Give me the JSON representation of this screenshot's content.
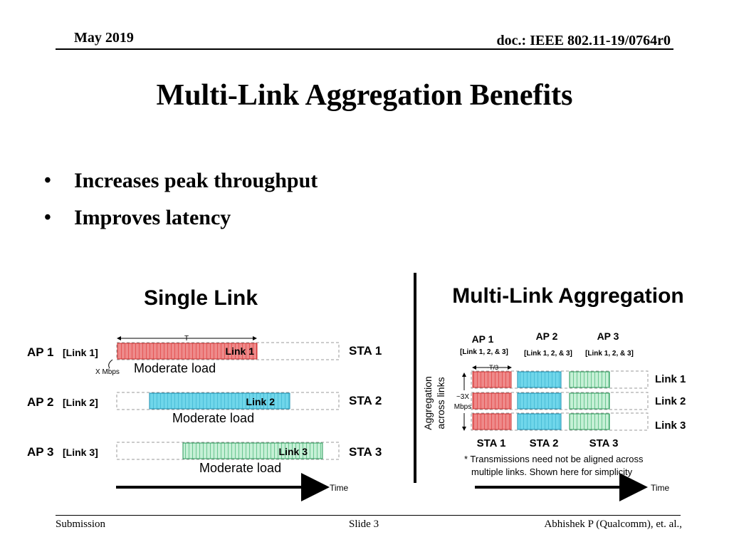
{
  "header": {
    "date": "May 2019",
    "doc": "doc.: IEEE 802.11-19/0764r0"
  },
  "title": "Multi-Link Aggregation Benefits",
  "bullets": [
    "Increases peak throughput",
    "Improves latency"
  ],
  "single": {
    "heading": "Single Link",
    "period": "T",
    "rate": "X Mbps",
    "time": "Time",
    "rows": [
      {
        "ap": "AP 1",
        "link": "[Link 1]",
        "bar": "Link 1",
        "load": "Moderate load",
        "sta": "STA 1",
        "color": "#e87272"
      },
      {
        "ap": "AP 2",
        "link": "[Link 2]",
        "bar": "Link 2",
        "load": "Moderate load",
        "sta": "STA 2",
        "color": "#5ccfe6"
      },
      {
        "ap": "AP 3",
        "link": "[Link 3]",
        "bar": "Link 3",
        "load": "Moderate load",
        "sta": "STA 3",
        "color": "#8fe0b0"
      }
    ]
  },
  "multi": {
    "heading": "Multi-Link Aggregation",
    "aps": [
      {
        "ap": "AP 1",
        "links": "[Link 1, 2, & 3]"
      },
      {
        "ap": "AP 2",
        "links": "[Link 1, 2, & 3]"
      },
      {
        "ap": "AP 3",
        "links": "[Link 1, 2, & 3]"
      }
    ],
    "period": "~T/3",
    "axis_label_1": "Aggregation",
    "axis_label_2": "across links",
    "rate_1": "~3X",
    "rate_2": "Mbps",
    "links": [
      "Link 1",
      "Link 2",
      "Link 3"
    ],
    "stas": [
      "STA 1",
      "STA 2",
      "STA 3"
    ],
    "note_1": "* Transmissions need not be aligned across",
    "note_2": "multiple links. Shown here for simplicity",
    "time": "Time"
  },
  "footer": {
    "left": "Submission",
    "center": "Slide 3",
    "right": "Abhishek P (Qualcomm), et. al.,"
  }
}
